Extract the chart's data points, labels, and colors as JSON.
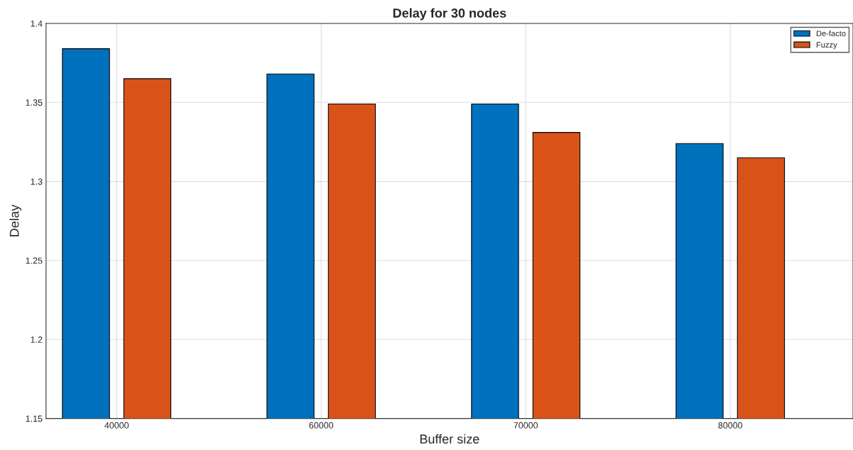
{
  "chart_data": {
    "type": "bar",
    "title": "Delay for 30 nodes",
    "xlabel": "Buffer size",
    "ylabel": "Delay",
    "categories": [
      "40000",
      "60000",
      "70000",
      "80000"
    ],
    "series": [
      {
        "name": "De-facto",
        "color": "#0072bd",
        "values": [
          1.384,
          1.368,
          1.349,
          1.324
        ]
      },
      {
        "name": "Fuzzy",
        "color": "#d95319",
        "values": [
          1.365,
          1.349,
          1.331,
          1.315
        ]
      }
    ],
    "ylim": [
      1.15,
      1.4
    ],
    "yticks": [
      1.15,
      1.2,
      1.25,
      1.3,
      1.35,
      1.4
    ],
    "grid": true,
    "legend": "top right"
  }
}
